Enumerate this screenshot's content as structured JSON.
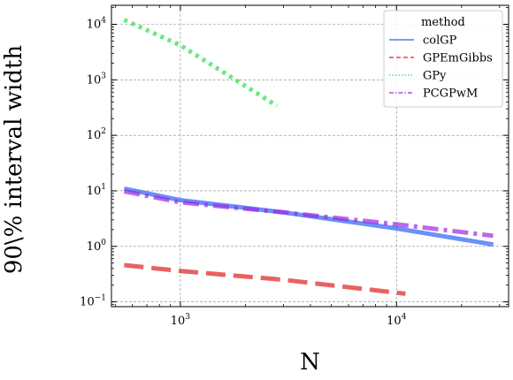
{
  "chart_data": {
    "type": "line",
    "title": "",
    "xlabel": "N",
    "ylabel": "90\\% interval width",
    "xscale": "log",
    "yscale": "log",
    "xlim": [
      480,
      33000
    ],
    "ylim": [
      0.082,
      22000
    ],
    "grid": true,
    "legend": {
      "title": "method",
      "placement": "top-right"
    },
    "x_ticks": [
      {
        "value": 1000,
        "base": "10",
        "exp": "3"
      },
      {
        "value": 10000,
        "base": "10",
        "exp": "4"
      }
    ],
    "y_ticks": [
      {
        "value": 0.1,
        "base": "10",
        "exp": "−1"
      },
      {
        "value": 1,
        "base": "10",
        "exp": "0"
      },
      {
        "value": 10,
        "base": "10",
        "exp": "1"
      },
      {
        "value": 100,
        "base": "10",
        "exp": "2"
      },
      {
        "value": 1000,
        "base": "10",
        "exp": "3"
      },
      {
        "value": 10000,
        "base": "10",
        "exp": "4"
      }
    ],
    "series": [
      {
        "name": "colGP",
        "color": "#2b62f5",
        "dash": "solid",
        "x": [
          550,
          1000,
          3000,
          10000,
          28000
        ],
        "y": [
          11,
          6.8,
          4.1,
          2.1,
          1.08
        ]
      },
      {
        "name": "GPEmGibbs",
        "color": "#e02020",
        "dash": "dashed",
        "x": [
          550,
          1000,
          3000,
          11000
        ],
        "y": [
          0.46,
          0.36,
          0.25,
          0.14
        ]
      },
      {
        "name": "GPy",
        "color": "#2ae04a",
        "dash": "dotted",
        "x": [
          550,
          1000,
          2800
        ],
        "y": [
          12000,
          4200,
          340
        ]
      },
      {
        "name": "PCGPwM",
        "color": "#9b2ae0",
        "dash": "dashdot",
        "x": [
          550,
          1000,
          3000,
          10000,
          28000
        ],
        "y": [
          9.8,
          6.2,
          4.1,
          2.5,
          1.55
        ]
      }
    ]
  }
}
